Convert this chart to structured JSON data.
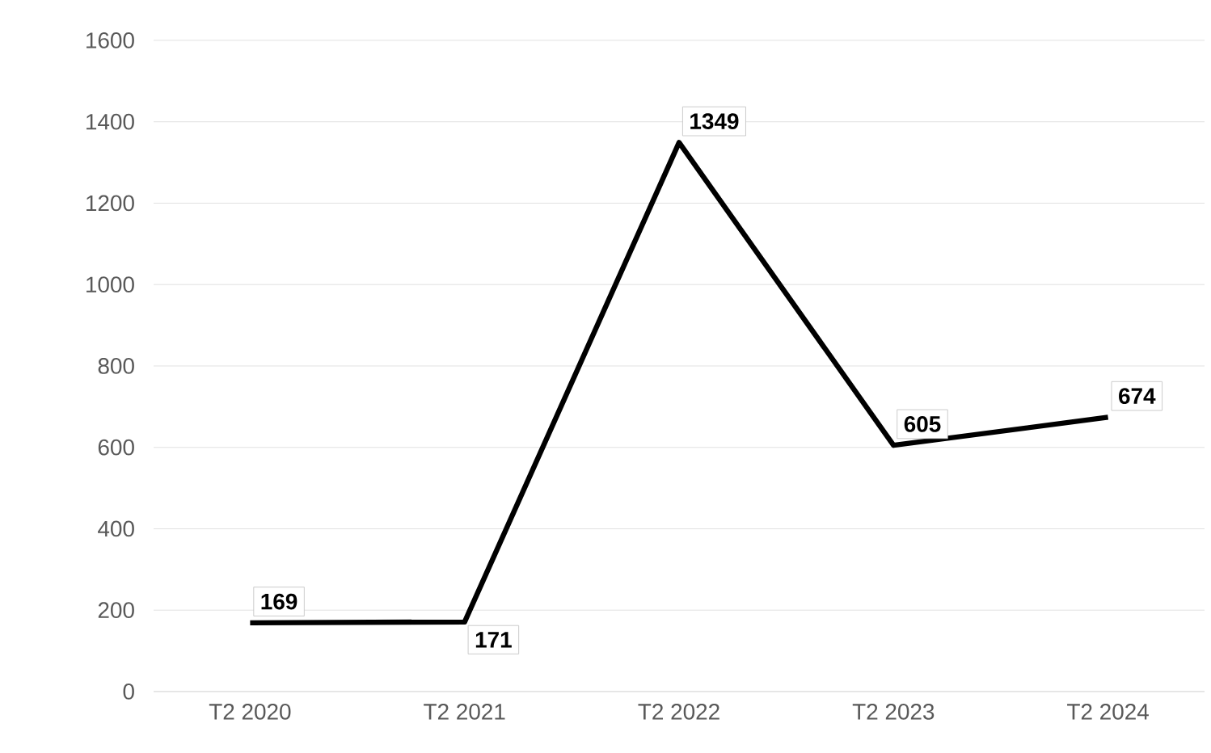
{
  "chart_data": {
    "type": "line",
    "categories": [
      "T2 2020",
      "T2 2021",
      "T2 2022",
      "T2 2023",
      "T2 2024"
    ],
    "series": [
      {
        "color": "#000000",
        "values": [
          169,
          171,
          1349,
          605,
          674
        ]
      }
    ],
    "ylim": [
      0,
      1600
    ],
    "yticks": [
      0,
      200,
      400,
      600,
      800,
      1000,
      1200,
      1400,
      1600
    ],
    "grid": "y",
    "marker": "none",
    "line_style": "solid",
    "data_labels": true
  }
}
